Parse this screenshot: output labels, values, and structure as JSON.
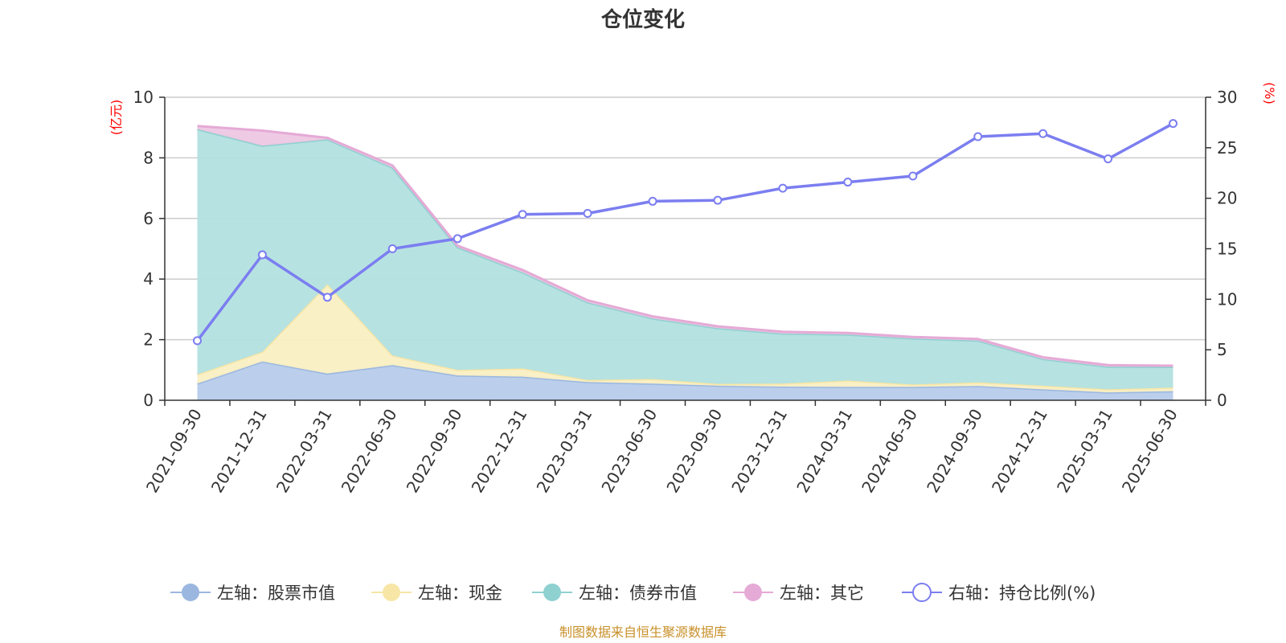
{
  "chart_data": {
    "type": "area",
    "title": "仓位变化",
    "left_unit": "(亿元)",
    "right_unit": "(%)",
    "categories": [
      "2021-09-30",
      "2021-12-31",
      "2022-03-31",
      "2022-06-30",
      "2022-09-30",
      "2022-12-31",
      "2023-03-31",
      "2023-06-30",
      "2023-09-30",
      "2023-12-31",
      "2024-03-31",
      "2024-06-30",
      "2024-09-30",
      "2024-12-31",
      "2025-03-31",
      "2025-06-30"
    ],
    "left_axis": {
      "min": 0,
      "max": 10,
      "ticks": [
        0,
        2,
        4,
        6,
        8,
        10
      ]
    },
    "right_axis": {
      "min": 0,
      "max": 30,
      "ticks": [
        0,
        5,
        10,
        15,
        20,
        25,
        30
      ]
    },
    "stacked": true,
    "grid": true,
    "legend_position": "bottom",
    "series": [
      {
        "name": "左轴：股票市值",
        "axis": "left",
        "type": "area",
        "color": "#9bb7e0",
        "fill": "#b7cceb",
        "values": [
          0.55,
          1.28,
          0.88,
          1.16,
          0.82,
          0.78,
          0.6,
          0.55,
          0.48,
          0.45,
          0.44,
          0.44,
          0.47,
          0.36,
          0.26,
          0.3
        ]
      },
      {
        "name": "左轴：现金",
        "axis": "left",
        "type": "area",
        "color": "#f7e6a6",
        "fill": "#faefc3",
        "values": [
          0.3,
          0.32,
          2.95,
          0.32,
          0.18,
          0.27,
          0.07,
          0.15,
          0.06,
          0.1,
          0.21,
          0.08,
          0.12,
          0.12,
          0.1,
          0.12
        ]
      },
      {
        "name": "左轴：债券市值",
        "axis": "left",
        "type": "area",
        "color": "#8fd0d0",
        "fill": "#b3e0e0",
        "values": [
          8.1,
          6.8,
          4.78,
          6.2,
          4.05,
          3.17,
          2.56,
          2.0,
          1.84,
          1.65,
          1.52,
          1.52,
          1.38,
          0.88,
          0.75,
          0.68
        ]
      },
      {
        "name": "左轴：其它",
        "axis": "left",
        "type": "area",
        "color": "#e5aad6",
        "fill": "#eec7e3",
        "values": [
          0.1,
          0.5,
          0.05,
          0.07,
          0.05,
          0.08,
          0.07,
          0.07,
          0.06,
          0.06,
          0.05,
          0.05,
          0.05,
          0.06,
          0.05,
          0.04
        ]
      },
      {
        "name": "右轴：持仓比例(%)",
        "axis": "right",
        "type": "line",
        "color": "#7b7ef0",
        "values": [
          5.9,
          14.4,
          10.2,
          15.0,
          16.0,
          18.4,
          18.5,
          19.7,
          19.8,
          21.0,
          21.6,
          22.2,
          26.1,
          26.4,
          23.9,
          27.4
        ]
      }
    ],
    "source_note": "制图数据来自恒生聚源数据库"
  }
}
